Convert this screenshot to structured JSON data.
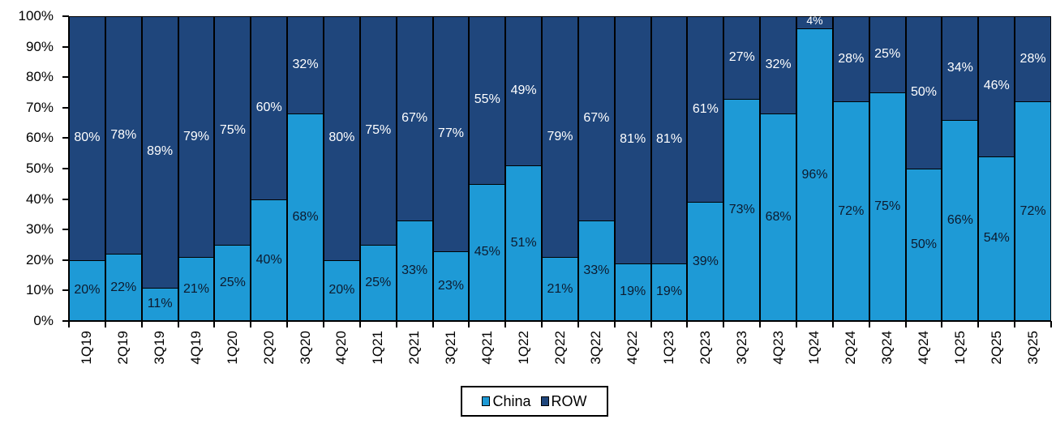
{
  "chart_data": {
    "type": "bar",
    "stacked": true,
    "normalized_100pct": true,
    "title": "",
    "xlabel": "",
    "ylabel": "",
    "ylim": [
      0,
      100
    ],
    "y_ticks": [
      "0%",
      "10%",
      "20%",
      "30%",
      "40%",
      "50%",
      "60%",
      "70%",
      "80%",
      "90%",
      "100%"
    ],
    "categories": [
      "1Q19",
      "2Q19",
      "3Q19",
      "4Q19",
      "1Q20",
      "2Q20",
      "3Q20",
      "4Q20",
      "1Q21",
      "2Q21",
      "3Q21",
      "4Q21",
      "1Q22",
      "2Q22",
      "3Q22",
      "4Q22",
      "1Q23",
      "2Q23",
      "3Q23",
      "4Q23",
      "1Q24",
      "2Q24",
      "3Q24",
      "4Q24",
      "1Q25",
      "2Q25",
      "3Q25"
    ],
    "series": [
      {
        "name": "China",
        "color": "#1e9ad6",
        "values": [
          20,
          22,
          11,
          21,
          25,
          40,
          68,
          20,
          25,
          33,
          23,
          45,
          51,
          21,
          33,
          19,
          19,
          39,
          73,
          68,
          96,
          72,
          75,
          50,
          66,
          54,
          72
        ]
      },
      {
        "name": "ROW",
        "color": "#1f467c",
        "values": [
          80,
          78,
          89,
          79,
          75,
          60,
          32,
          80,
          75,
          67,
          77,
          55,
          49,
          79,
          67,
          81,
          81,
          61,
          27,
          32,
          4,
          28,
          25,
          50,
          34,
          46,
          28
        ]
      }
    ],
    "legend": {
      "position": "bottom-center",
      "entries": [
        "China",
        "ROW"
      ]
    },
    "grid": false
  }
}
